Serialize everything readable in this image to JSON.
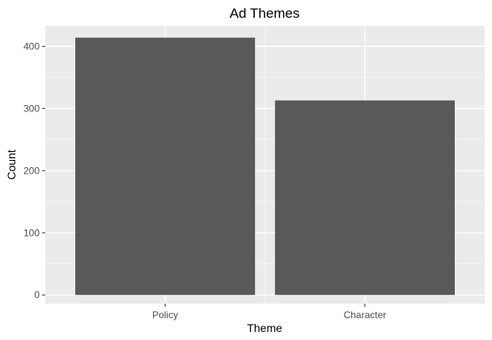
{
  "chart_data": {
    "type": "bar",
    "title": "Ad Themes",
    "xlabel": "Theme",
    "ylabel": "Count",
    "categories": [
      "Policy",
      "Character"
    ],
    "values": [
      414,
      313
    ],
    "ylim": [
      -14,
      433
    ],
    "yticks": [
      0,
      100,
      200,
      300,
      400
    ],
    "grid": true,
    "legend": "none",
    "colors": {
      "bar": "#595959",
      "panel": "#ebebeb",
      "grid_major": "#ffffff",
      "tick_text": "#4d4d4d"
    }
  }
}
